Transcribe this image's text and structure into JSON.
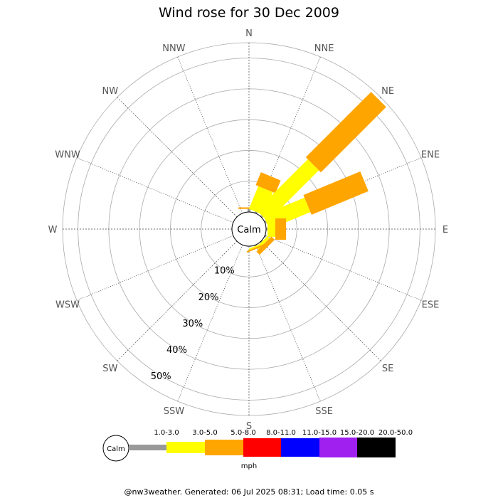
{
  "chart_data": {
    "type": "wind-rose",
    "title": "Wind rose for 30 Dec 2009",
    "directions": [
      "N",
      "NNE",
      "NE",
      "ENE",
      "E",
      "ESE",
      "SE",
      "SSE",
      "S",
      "SSW",
      "SW",
      "WSW",
      "W",
      "WNW",
      "NW",
      "NNW"
    ],
    "ring_labels": [
      "10%",
      "20%",
      "30%",
      "40%",
      "50%"
    ],
    "rmax": 55,
    "calm_label": "Calm",
    "legend_unit": "mph",
    "speed_bins": [
      {
        "label": "1.0-3.0",
        "color": "#999999"
      },
      {
        "label": "3.0-5.0",
        "color": "#ffff00"
      },
      {
        "label": "5.0-8.0",
        "color": "#ffa500"
      },
      {
        "label": "8.0-11.0",
        "color": "#ff0000"
      },
      {
        "label": "11.0-15.0",
        "color": "#0000ff"
      },
      {
        "label": "15.0-20.0",
        "color": "#a020f0"
      },
      {
        "label": "20.0-50.0",
        "color": "#000000"
      }
    ],
    "series": [
      {
        "direction": "N",
        "values": [
          1.0,
          0.0,
          0.5,
          0,
          0,
          0,
          0
        ]
      },
      {
        "direction": "NNE",
        "values": [
          0.5,
          8.0,
          4.5,
          0,
          0,
          0,
          0
        ]
      },
      {
        "direction": "NE",
        "values": [
          0.5,
          23.5,
          30.0,
          0,
          0,
          0,
          0
        ]
      },
      {
        "direction": "ENE",
        "values": [
          0.5,
          14.5,
          20.0,
          0,
          0,
          0,
          0
        ]
      },
      {
        "direction": "E",
        "values": [
          0.5,
          2.5,
          3.5,
          0,
          0,
          0,
          0
        ]
      },
      {
        "direction": "ESE",
        "values": [
          0.5,
          0.0,
          0.0,
          0,
          0,
          0,
          0
        ]
      },
      {
        "direction": "SE",
        "values": [
          0.3,
          1.0,
          1.5,
          0,
          0,
          0,
          0
        ]
      },
      {
        "direction": "SSE",
        "values": [
          0.3,
          0.5,
          0.5,
          0,
          0,
          0,
          0
        ]
      }
    ]
  },
  "footer": "@nw3weather. Generated: 06 Jul 2025 08:31; Load time: 0.05 s"
}
